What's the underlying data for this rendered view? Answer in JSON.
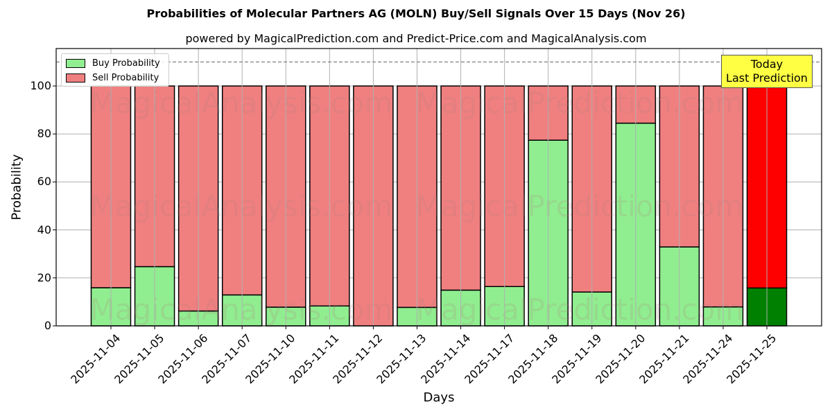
{
  "chart_data": {
    "type": "bar",
    "stacked": true,
    "title": "Probabilities of Molecular Partners AG (MOLN) Buy/Sell Signals Over 15 Days (Nov 26)",
    "subtitle": "powered by MagicalPrediction.com and Predict-Price.com and MagicalAnalysis.com",
    "xlabel": "Days",
    "ylabel": "Probability",
    "ylim": [
      0,
      115
    ],
    "yticks": [
      0,
      20,
      40,
      60,
      80,
      100
    ],
    "grid": true,
    "legend_position": "upper left",
    "categories": [
      "2025-11-04",
      "2025-11-05",
      "2025-11-06",
      "2025-11-07",
      "2025-11-10",
      "2025-11-11",
      "2025-11-12",
      "2025-11-13",
      "2025-11-14",
      "2025-11-17",
      "2025-11-18",
      "2025-11-19",
      "2025-11-20",
      "2025-11-21",
      "2025-11-24",
      "2025-11-25"
    ],
    "series": [
      {
        "name": "Buy Probability",
        "color": "#90ee90",
        "values": [
          15.9,
          24.7,
          6.2,
          12.9,
          7.8,
          8.3,
          0.0,
          7.7,
          14.9,
          16.4,
          77.4,
          14.1,
          84.5,
          32.9,
          7.9,
          15.8
        ]
      },
      {
        "name": "Sell Probability",
        "color": "#f08080",
        "values": [
          84.1,
          75.3,
          93.8,
          87.1,
          92.2,
          91.7,
          100.0,
          92.3,
          85.1,
          83.6,
          22.6,
          85.9,
          15.5,
          67.1,
          92.1,
          84.2
        ]
      }
    ],
    "highlight": {
      "index": 15,
      "buy_color": "#008000",
      "sell_color": "#ff0000"
    },
    "reference_line": {
      "y": 110,
      "style": "dashed",
      "color": "#808080"
    },
    "annotation": {
      "line1": "Today",
      "line2": "Last Prediction",
      "background": "#ffff44"
    },
    "watermarks": [
      "MagicalAnalysis.com",
      "MagicalPrediction.com"
    ]
  }
}
